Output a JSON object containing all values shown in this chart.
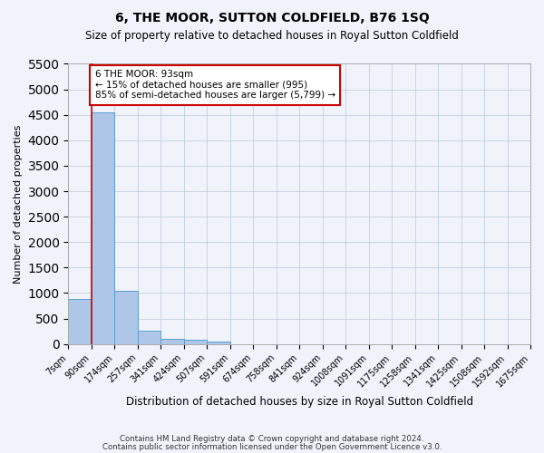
{
  "title": "6, THE MOOR, SUTTON COLDFIELD, B76 1SQ",
  "subtitle": "Size of property relative to detached houses in Royal Sutton Coldfield",
  "xlabel": "Distribution of detached houses by size in Royal Sutton Coldfield",
  "ylabel": "Number of detached properties",
  "footer1": "Contains HM Land Registry data © Crown copyright and database right 2024.",
  "footer2": "Contains public sector information licensed under the Open Government Licence v3.0.",
  "bin_labels": [
    "7sqm",
    "90sqm",
    "174sqm",
    "257sqm",
    "341sqm",
    "424sqm",
    "507sqm",
    "591sqm",
    "674sqm",
    "758sqm",
    "841sqm",
    "924sqm",
    "1008sqm",
    "1091sqm",
    "1175sqm",
    "1258sqm",
    "1341sqm",
    "1425sqm",
    "1508sqm",
    "1592sqm",
    "1675sqm"
  ],
  "bar_heights": [
    880,
    4540,
    1050,
    270,
    100,
    90,
    55,
    0,
    0,
    0,
    0,
    0,
    0,
    0,
    0,
    0,
    0,
    0,
    0,
    0
  ],
  "bar_color": "#aec6e8",
  "bar_edge_color": "#5a9fd4",
  "ylim": [
    0,
    5500
  ],
  "yticks": [
    0,
    500,
    1000,
    1500,
    2000,
    2500,
    3000,
    3500,
    4000,
    4500,
    5000,
    5500
  ],
  "property_line_x": 1,
  "property_line_color": "#cc0000",
  "annotation_text_line1": "6 THE MOOR: 93sqm",
  "annotation_text_line2": "← 15% of detached houses are smaller (995)",
  "annotation_text_line3": "85% of semi-detached houses are larger (5,799) →",
  "annotation_box_color": "#cc0000",
  "bg_color": "#f0f4fa"
}
